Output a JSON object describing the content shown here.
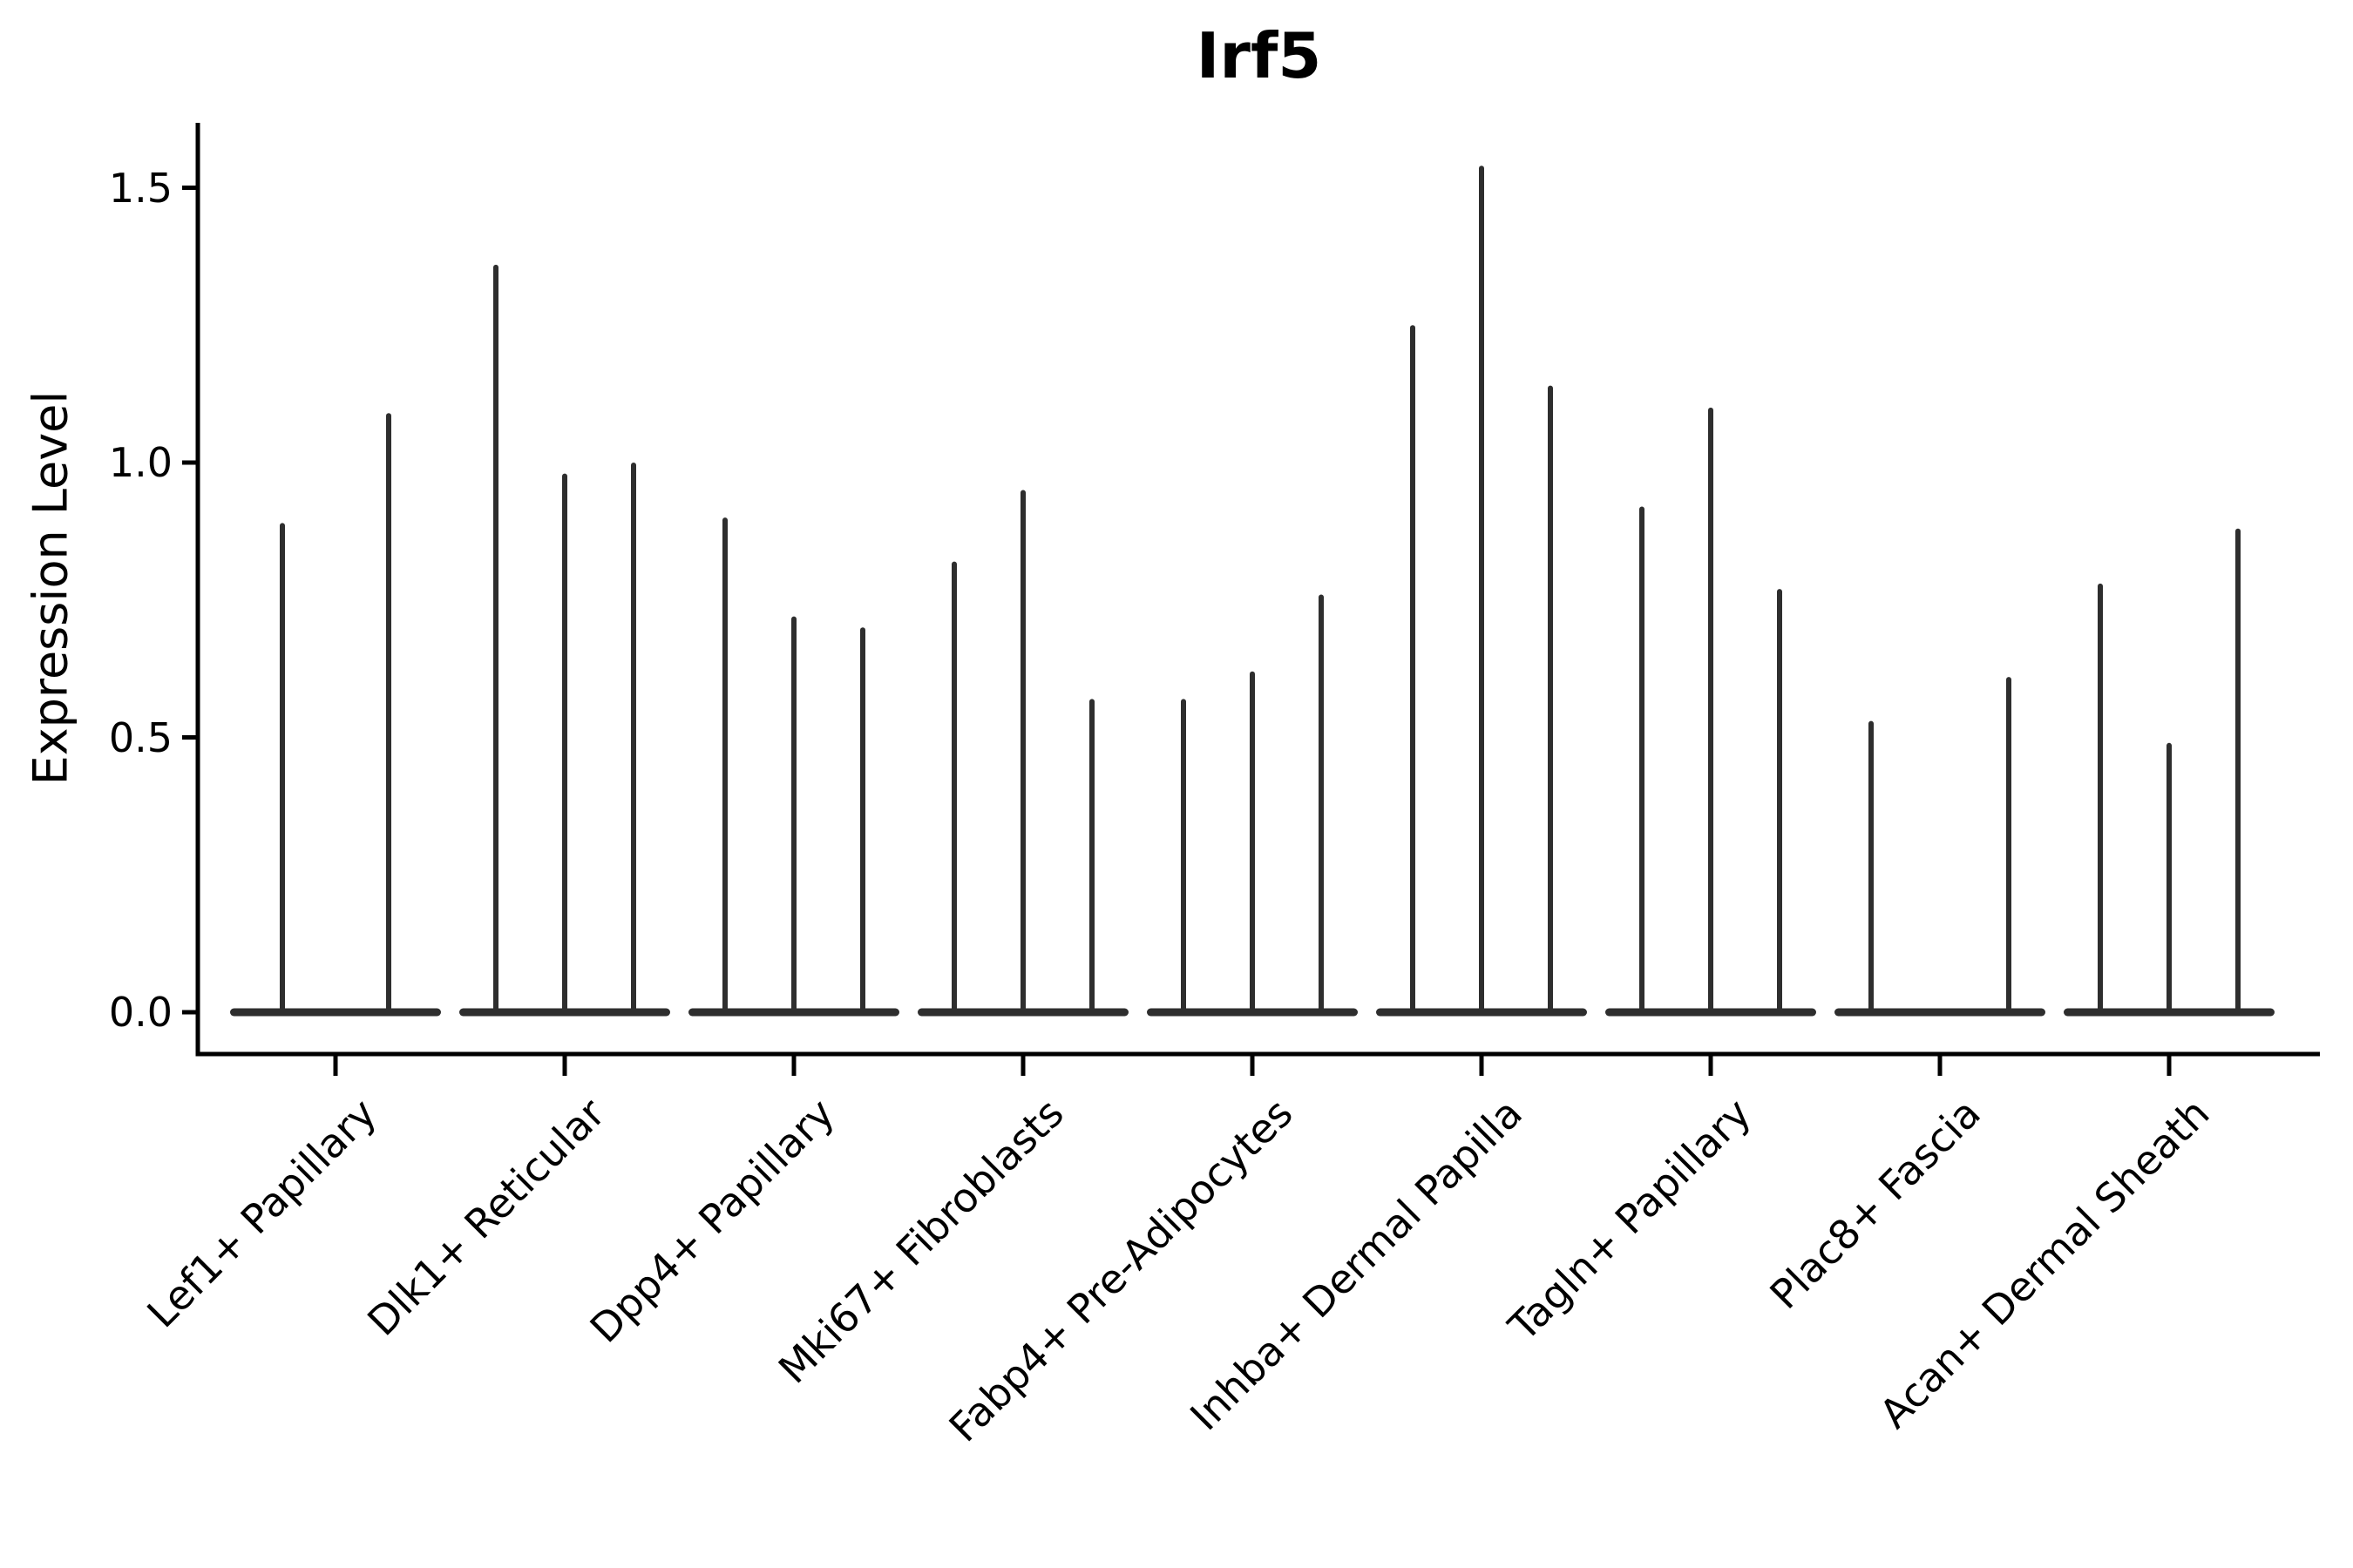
{
  "title": "Irf5",
  "y_axis": {
    "label": "Expression Level",
    "tick_labels": [
      "0.0",
      "0.5",
      "1.0",
      "1.5"
    ]
  },
  "x_axis": {
    "tick_labels": [
      "Lef1+ Papillary",
      "Dlk1+ Reticular",
      "Dpp4+ Papillary",
      "Mki67+ Fibroblasts",
      "Fabp4+ Pre-Adipocytes",
      "Inhba+ Dermal Papilla",
      "Tagln+ Papillary",
      "Plac8+ Fascia",
      "Acan+ Dermal Sheath"
    ]
  },
  "chart_data": {
    "type": "violin",
    "title": "Irf5",
    "xlabel": "",
    "ylabel": "Expression Level",
    "ylim": [
      -0.086,
      1.62
    ],
    "yticks": [
      0.0,
      0.5,
      1.0,
      1.5
    ],
    "ytick_labels": [
      "0.0",
      "0.5",
      "1.0",
      "1.5"
    ],
    "grid": false,
    "legend_position": "none",
    "violin_color": "#2e2e2e",
    "axis_color": "#000000",
    "background_color": "#ffffff",
    "style_note": "needle-thin violin plot (single-cell expression, Seurat-style); each violin is a vertical spike from 0 up to its peak value with a flat basal blob at 0",
    "categories": [
      "Lef1+ Papillary",
      "Dlk1+ Reticular",
      "Dpp4+ Papillary",
      "Mki67+ Fibroblasts",
      "Fabp4+ Pre-Adipocytes",
      "Inhba+ Dermal Papilla",
      "Tagln+ Papillary",
      "Plac8+ Fascia",
      "Acan+ Dermal Sheath"
    ],
    "series": [
      {
        "category": "Lef1+ Papillary",
        "violin_peaks": [
          0.89,
          1.09
        ]
      },
      {
        "category": "Dlk1+ Reticular",
        "violin_peaks": [
          1.36,
          0.98,
          1.0
        ]
      },
      {
        "category": "Dpp4+ Papillary",
        "violin_peaks": [
          0.9,
          0.72,
          0.7
        ]
      },
      {
        "category": "Mki67+ Fibroblasts",
        "violin_peaks": [
          0.82,
          0.95,
          0.57
        ]
      },
      {
        "category": "Fabp4+ Pre-Adipocytes",
        "violin_peaks": [
          0.57,
          0.62,
          0.76
        ]
      },
      {
        "category": "Inhba+ Dermal Papilla",
        "violin_peaks": [
          1.25,
          1.54,
          1.14
        ]
      },
      {
        "category": "Tagln+ Papillary",
        "violin_peaks": [
          0.92,
          1.1,
          0.77
        ]
      },
      {
        "category": "Plac8+ Fascia",
        "violin_peaks": [
          0.53,
          null,
          0.61
        ]
      },
      {
        "category": "Acan+ Dermal Sheath",
        "violin_peaks": [
          0.78,
          0.49,
          0.88
        ]
      }
    ]
  }
}
